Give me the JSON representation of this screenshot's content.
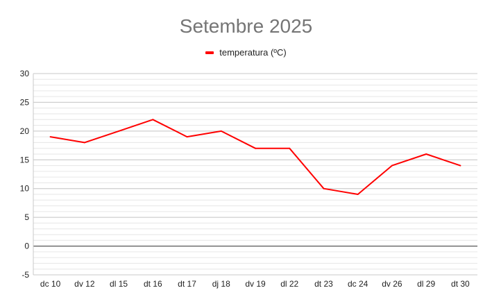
{
  "chart_data": {
    "type": "line",
    "title": "Setembre 2025",
    "xlabel": "",
    "ylabel": "",
    "categories": [
      "dc 10",
      "dv 12",
      "dl 15",
      "dt 16",
      "dt 17",
      "dj 18",
      "dv 19",
      "dl 22",
      "dt 23",
      "dc 24",
      "dv 26",
      "dl 29",
      "dt 30"
    ],
    "series": [
      {
        "name": "temperatura (ºC)",
        "color": "#ff0000",
        "values": [
          19,
          18,
          20,
          22,
          19,
          20,
          17,
          17,
          10,
          9,
          14,
          16,
          14
        ]
      }
    ],
    "ylim": [
      -5,
      30
    ],
    "yticks": [
      -5,
      0,
      5,
      10,
      15,
      20,
      25,
      30
    ],
    "minor_grid": true,
    "grid": true,
    "legend_position": "top"
  }
}
